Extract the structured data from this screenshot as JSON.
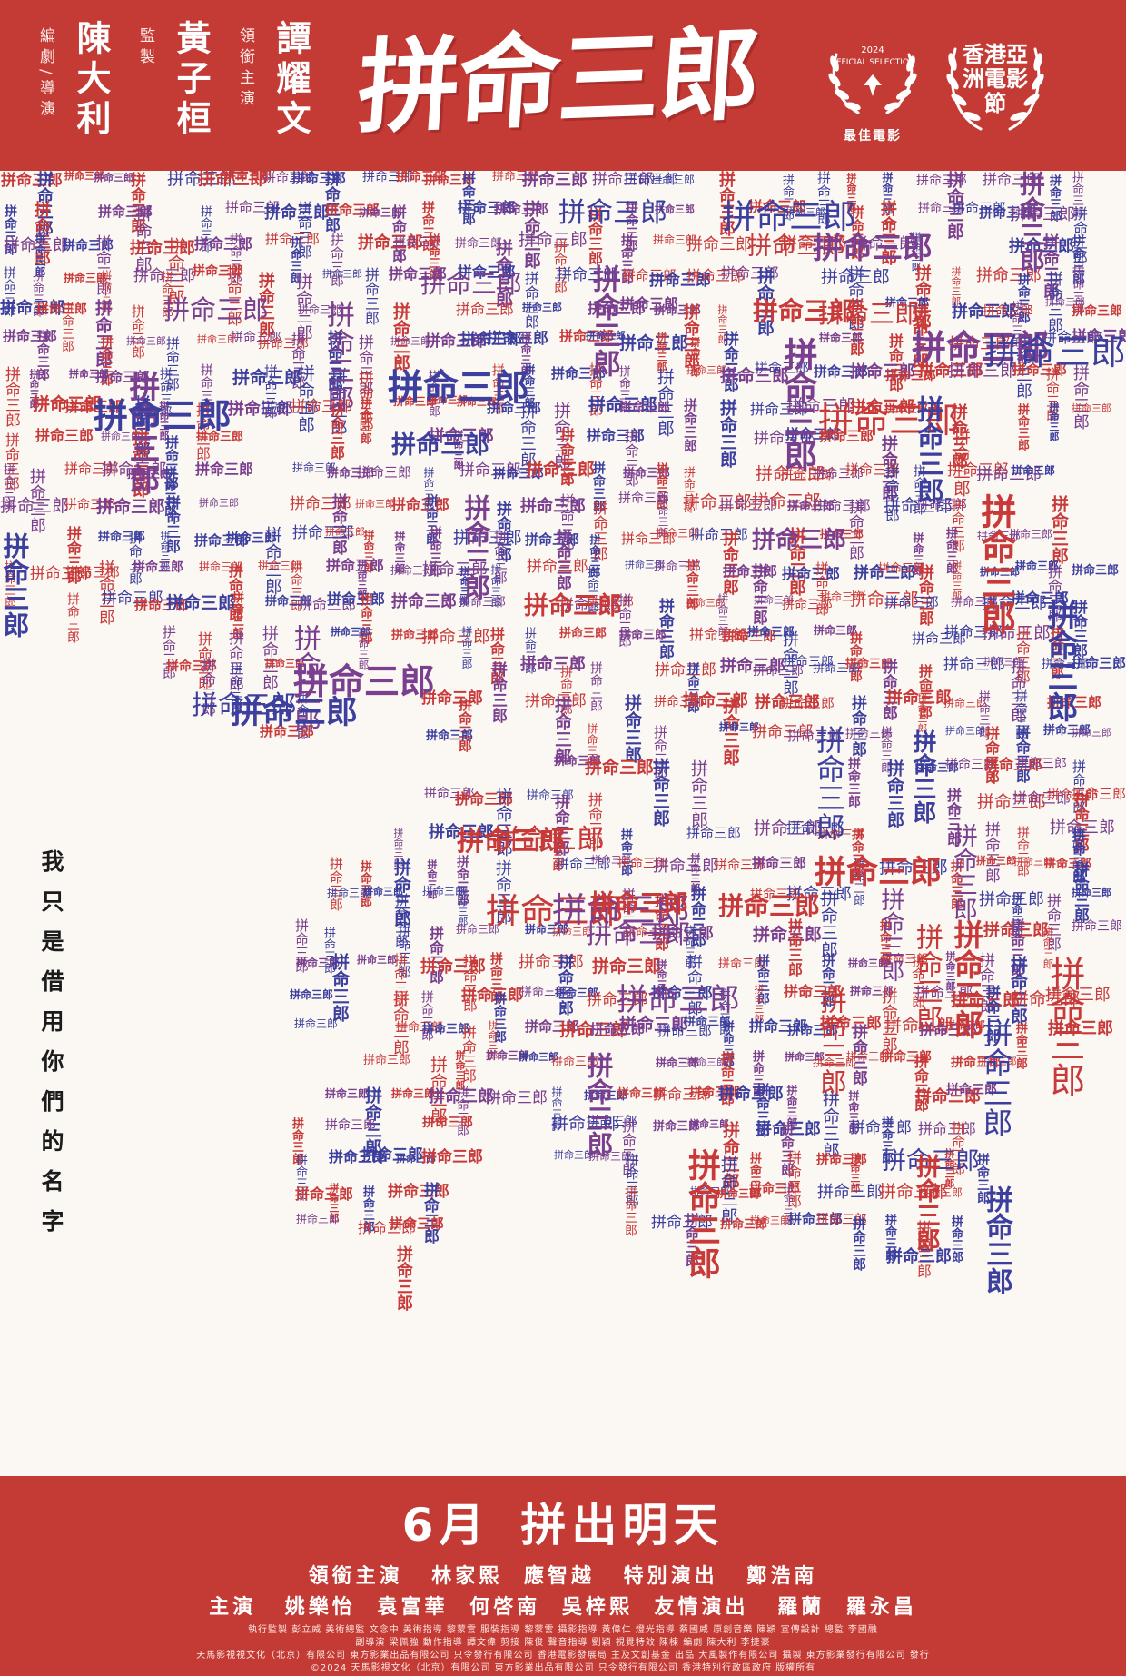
{
  "header": {
    "credits": [
      {
        "role": "編劇/導演",
        "name": "陳大利"
      },
      {
        "role": "監製",
        "name": "黃子桓"
      },
      {
        "role": "領銜主演",
        "name": "譚耀文"
      }
    ],
    "title": "拼命三郎",
    "award_1": {
      "year": "2024",
      "selection": "OFFICIAL SELECTION",
      "name": "最佳電影"
    },
    "award_2": {
      "name": "香港亞洲電影節"
    }
  },
  "cloud": {
    "word": "拼命三郎",
    "colors": [
      "#c83a3a",
      "#3c3f9e",
      "#7a3f8e"
    ]
  },
  "tagline": "我只是借用你們的名字",
  "footer": {
    "release_date": "6月",
    "release_slogan": "拼出明天",
    "lead_label": "領銜主演",
    "lead_cast": [
      "林家熙",
      "應智越"
    ],
    "special_label": "特別演出",
    "special_cast": [
      "鄭浩南"
    ],
    "main_label": "主演",
    "main_cast": [
      "姚樂怡",
      "袁富華",
      "何啓南",
      "吳梓熙"
    ],
    "friend_label": "友情演出",
    "friend_cast": [
      "羅蘭",
      "羅永昌"
    ],
    "fine_print_1": "執行監製 彭立威    美術總監 文念中    美術指導 黎蒙雲    服裝指導 黎蒙雲    攝影指導 黃偉仁    燈光指導 蔡國威    原創音樂 陳穎    宣傳設計 總監 李國融",
    "fine_print_2": "副導演 梁佩強    動作指導 譚文偉    剪接 陳俊    聲音指導 劉穎    視覺特效 陳棟    編劇 陳大利 李捷豪",
    "fine_print_3": "天馬影視視文化（北京）有限公司   東方影業出品有限公司   只令發行有限公司   香港電影發展局 主及文創基金 出品   大風製作有限公司 攝製   東方影業發行有限公司 發行",
    "fine_print_4": "©2024 天馬影視文化（北京）有限公司 東方影業出品有限公司 只令發行有限公司 香港特別行政區政府 版權所有"
  }
}
